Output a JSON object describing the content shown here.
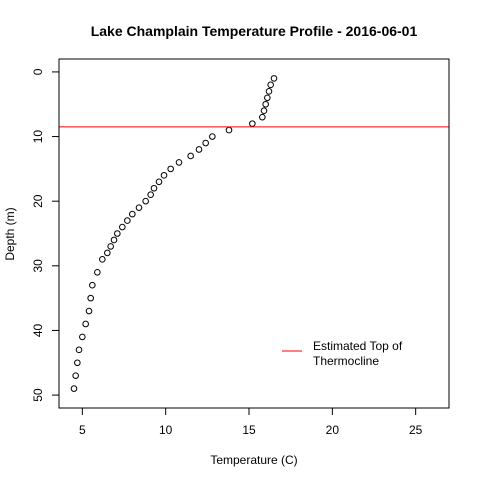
{
  "chart_data": {
    "type": "scatter",
    "title": "Lake Champlain Temperature Profile - 2016-06-01",
    "xlabel": "Temperature (C)",
    "ylabel": "Depth (m)",
    "xlim": [
      3.6,
      27.0
    ],
    "ylim": [
      52.0,
      -2.0
    ],
    "y_axis_reversed": true,
    "xticks": [
      5,
      10,
      15,
      20,
      25
    ],
    "yticks": [
      0,
      10,
      20,
      30,
      40,
      50
    ],
    "grid": false,
    "marker": "open-circle",
    "series": [
      {
        "points": [
          {
            "x": 16.5,
            "y": 1
          },
          {
            "x": 16.3,
            "y": 2
          },
          {
            "x": 16.2,
            "y": 3
          },
          {
            "x": 16.1,
            "y": 4
          },
          {
            "x": 16.0,
            "y": 5
          },
          {
            "x": 15.9,
            "y": 6
          },
          {
            "x": 15.8,
            "y": 7
          },
          {
            "x": 15.2,
            "y": 8
          },
          {
            "x": 13.8,
            "y": 9
          },
          {
            "x": 12.8,
            "y": 10
          },
          {
            "x": 12.4,
            "y": 11
          },
          {
            "x": 12.0,
            "y": 12
          },
          {
            "x": 11.5,
            "y": 13
          },
          {
            "x": 10.8,
            "y": 14
          },
          {
            "x": 10.3,
            "y": 15
          },
          {
            "x": 9.9,
            "y": 16
          },
          {
            "x": 9.6,
            "y": 17
          },
          {
            "x": 9.3,
            "y": 18
          },
          {
            "x": 9.1,
            "y": 19
          },
          {
            "x": 8.8,
            "y": 20
          },
          {
            "x": 8.4,
            "y": 21
          },
          {
            "x": 8.0,
            "y": 22
          },
          {
            "x": 7.7,
            "y": 23
          },
          {
            "x": 7.4,
            "y": 24
          },
          {
            "x": 7.1,
            "y": 25
          },
          {
            "x": 6.9,
            "y": 26
          },
          {
            "x": 6.7,
            "y": 27
          },
          {
            "x": 6.5,
            "y": 28
          },
          {
            "x": 6.2,
            "y": 29
          },
          {
            "x": 5.9,
            "y": 31
          },
          {
            "x": 5.6,
            "y": 33
          },
          {
            "x": 5.5,
            "y": 35
          },
          {
            "x": 5.4,
            "y": 37
          },
          {
            "x": 5.2,
            "y": 39
          },
          {
            "x": 5.0,
            "y": 41
          },
          {
            "x": 4.8,
            "y": 43
          },
          {
            "x": 4.7,
            "y": 45
          },
          {
            "x": 4.6,
            "y": 47
          },
          {
            "x": 4.5,
            "y": 49
          }
        ]
      }
    ],
    "annotations": [
      {
        "type": "hline",
        "y": 8.5,
        "color": "#ff0000",
        "label": "Estimated Top of Thermocline"
      }
    ],
    "legend": {
      "placement": "bottom-right",
      "entries": [
        {
          "line1": "Estimated Top of",
          "line2": "Thermocline",
          "color": "#ff0000"
        }
      ]
    }
  }
}
